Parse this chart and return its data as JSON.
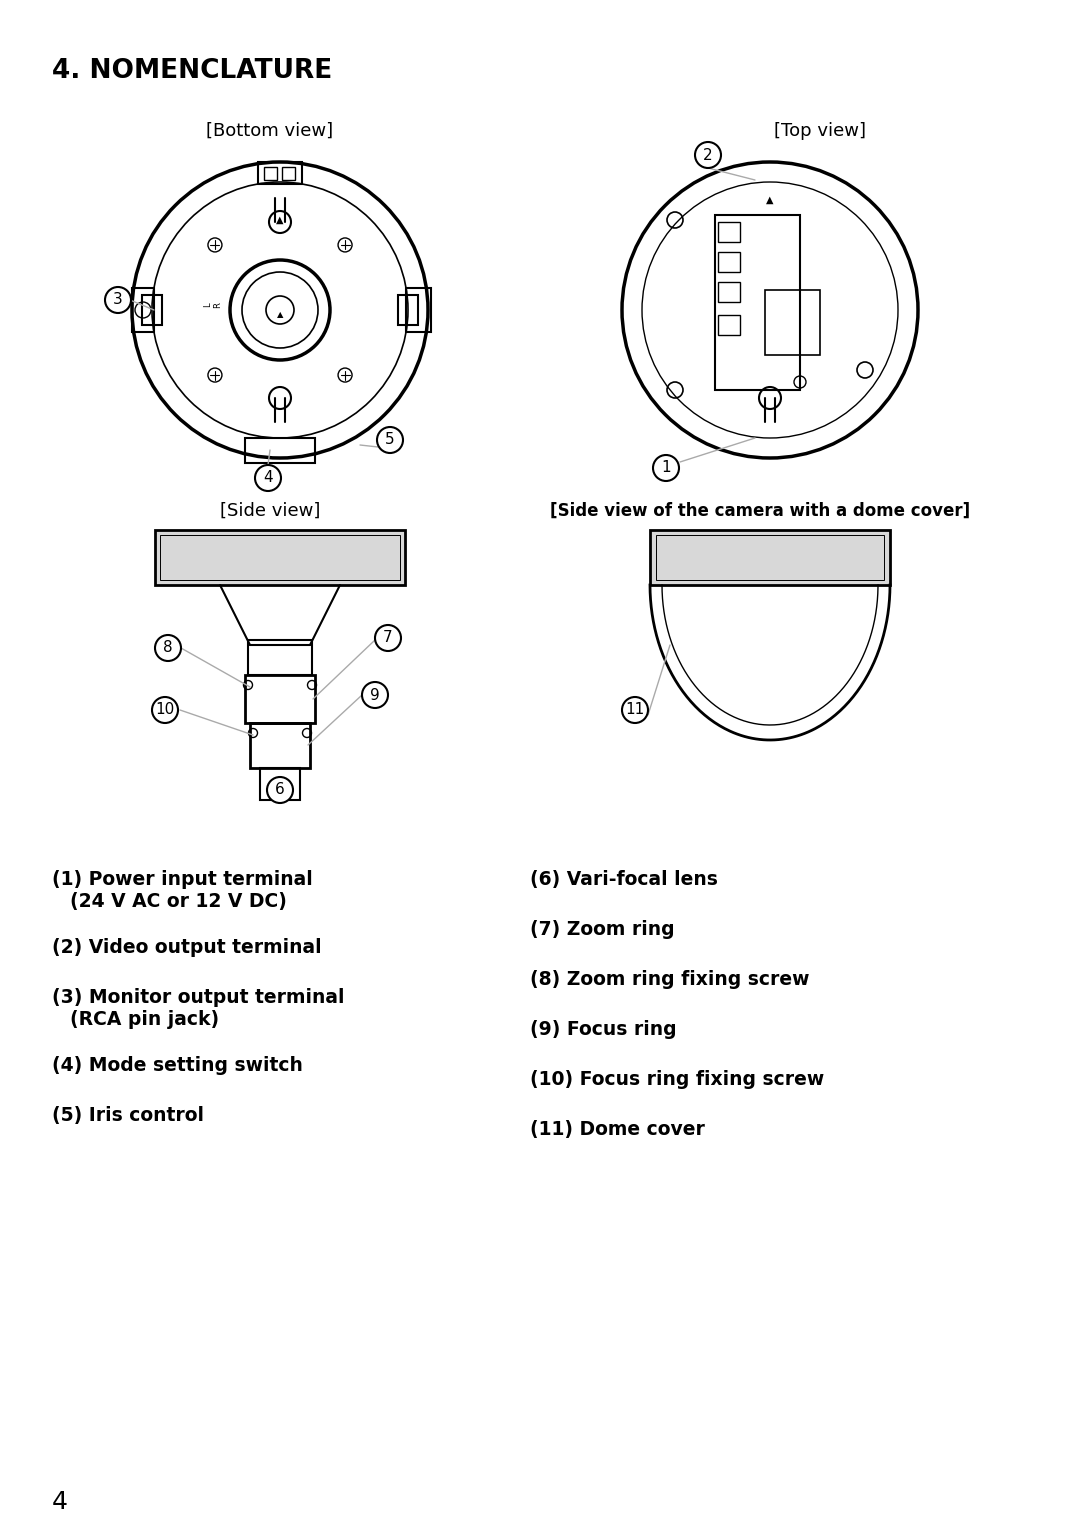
{
  "title": "4. NOMENCLATURE",
  "bg_color": "#ffffff",
  "bottom_view_label": "[Bottom view]",
  "top_view_label": "[Top view]",
  "side_view_label": "[Side view]",
  "side_dome_label": "[Side view of the camera with a dome cover]",
  "items_left": [
    "(1) Power input terminal\n    (24 V AC or 12 V DC)",
    "(2) Video output terminal",
    "(3) Monitor output terminal\n    (RCA pin jack)",
    "(4) Mode setting switch",
    "(5) Iris control"
  ],
  "items_right": [
    "(6) Vari-focal lens",
    "(7) Zoom ring",
    "(8) Zoom ring fixing screw",
    "(9) Focus ring",
    "(10) Focus ring fixing screw",
    "(11) Dome cover"
  ],
  "text_color": "#000000",
  "line_color": "#000000",
  "gray_color": "#aaaaaa",
  "light_gray": "#d8d8d8"
}
